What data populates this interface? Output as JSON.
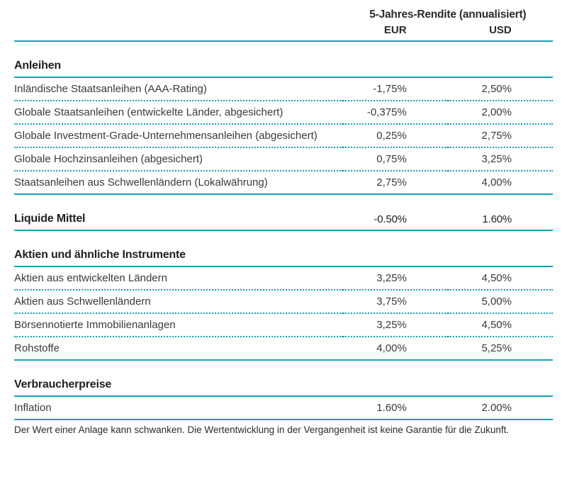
{
  "colors": {
    "rule": "#12a3b8",
    "text": "#2b2b2b",
    "background": "#ffffff"
  },
  "typography": {
    "header_fontsize_pt": 12,
    "body_fontsize_pt": 11,
    "foot_fontsize_pt": 10,
    "header_weight": 700,
    "section_weight": 700
  },
  "table": {
    "header_title": "5-Jahres-Rendite (annualisiert)",
    "columns": [
      "EUR",
      "USD"
    ],
    "column_align": [
      "right",
      "right"
    ],
    "sections": [
      {
        "title": "Anleihen",
        "rows": [
          {
            "label": "Inländische Staatsanleihen (AAA-Rating)",
            "eur": "-1,75%",
            "usd": "2,50%"
          },
          {
            "label": "Globale Staatsanleihen (entwickelte Länder, abgesichert)",
            "eur": "-0,375%",
            "usd": "2,00%"
          },
          {
            "label": "Globale Investment-Grade-Unternehmensanleihen (abgesichert)",
            "eur": "0,25%",
            "usd": "2,75%"
          },
          {
            "label": "Globale Hochzinsanleihen (abgesichert)",
            "eur": "0,75%",
            "usd": "3,25%"
          },
          {
            "label": "Staatsanleihen aus Schwellenländern (Lokalwährung)",
            "eur": "2,75%",
            "usd": "4,00%"
          }
        ]
      },
      {
        "title": "Liquide Mittel",
        "inline_values": {
          "eur": "-0.50%",
          "usd": "1.60%"
        },
        "rows": []
      },
      {
        "title": "Aktien und ähnliche Instrumente",
        "rows": [
          {
            "label": "Aktien aus entwickelten Ländern",
            "eur": "3,25%",
            "usd": "4,50%"
          },
          {
            "label": "Aktien aus Schwellenländern",
            "eur": "3,75%",
            "usd": "5,00%"
          },
          {
            "label": "Börsennotierte Immobilienanlagen",
            "eur": "3,25%",
            "usd": "4,50%"
          },
          {
            "label": "Rohstoffe",
            "eur": "4,00%",
            "usd": "5,25%"
          }
        ]
      },
      {
        "title": "Verbraucherpreise",
        "rows": [
          {
            "label": "Inflation",
            "eur": "1.60%",
            "usd": "2.00%"
          }
        ]
      }
    ]
  },
  "footnote": "Der Wert einer Anlage kann schwanken. Die Wertentwicklung in der Vergangenheit ist keine Garantie für die Zukunft."
}
